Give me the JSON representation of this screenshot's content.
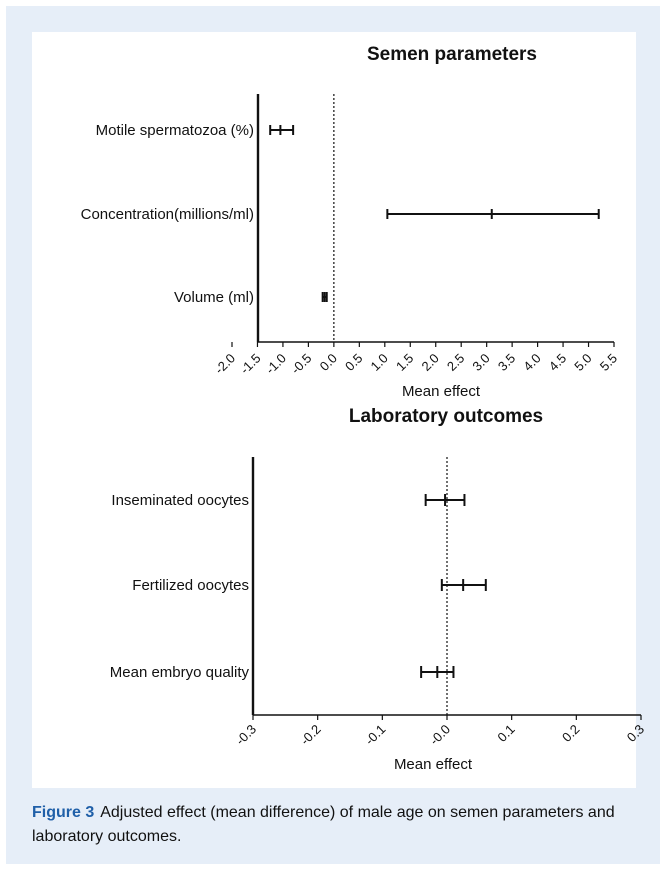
{
  "chart_data": [
    {
      "type": "forest",
      "title": "Semen parameters",
      "xlabel": "Mean effect",
      "xlim": [
        -2.0,
        5.5
      ],
      "x_ticks": [
        -2.0,
        -1.5,
        -1.0,
        -0.5,
        0.0,
        0.5,
        1.0,
        1.5,
        2.0,
        2.5,
        3.0,
        3.5,
        4.0,
        4.5,
        5.0,
        5.5
      ],
      "x_tick_labels": [
        "-2.0",
        "-1.5",
        "-1.0",
        "-0.5",
        "0.0",
        "0.5",
        "1.0",
        "1.5",
        "2.0",
        "2.5",
        "3.0",
        "3.5",
        "4.0",
        "4.5",
        "5.0",
        "5.5"
      ],
      "reference_line": 0.0,
      "items": [
        {
          "label": "Motile spermatozoa (%)",
          "estimate": -1.05,
          "lower": -1.25,
          "upper": -0.8
        },
        {
          "label": "Concentration(millions/ml)",
          "estimate": 3.1,
          "lower": 1.05,
          "upper": 5.2
        },
        {
          "label": "Volume (ml)",
          "estimate": -0.18,
          "lower": -0.22,
          "upper": -0.14
        }
      ]
    },
    {
      "type": "forest",
      "title": "Laboratory outcomes",
      "xlabel": "Mean effect",
      "xlim": [
        -0.3,
        0.3
      ],
      "x_ticks": [
        -0.3,
        -0.2,
        -0.1,
        0.0,
        0.1,
        0.2,
        0.3
      ],
      "x_tick_labels": [
        "-0.3",
        "-0.2",
        "-0.1",
        "-0.0",
        "0.1",
        "0.2",
        "0.3"
      ],
      "reference_line": 0.0,
      "items": [
        {
          "label": "Inseminated oocytes",
          "estimate": -0.003,
          "lower": -0.033,
          "upper": 0.027
        },
        {
          "label": "Fertilized oocytes",
          "estimate": 0.025,
          "lower": -0.008,
          "upper": 0.06
        },
        {
          "label": "Mean embryo quality",
          "estimate": -0.015,
          "lower": -0.04,
          "upper": 0.01
        }
      ]
    }
  ],
  "caption": {
    "label": "Figure 3",
    "text": "Adjusted effect (mean difference) of male age on semen parameters and laboratory outcomes."
  }
}
